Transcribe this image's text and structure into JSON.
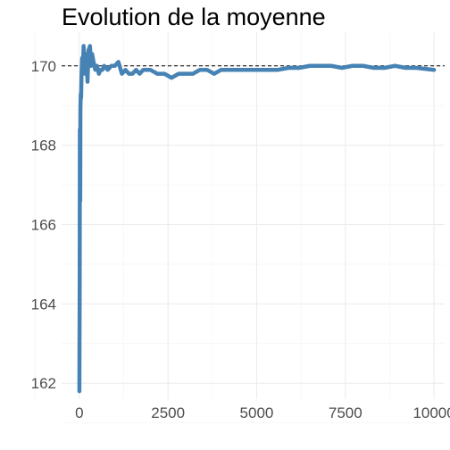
{
  "chart_data": {
    "type": "line",
    "title": "Evolution de la moyenne",
    "xlabel": "",
    "ylabel": "",
    "xlim": [
      -500,
      10300
    ],
    "ylim": [
      161.6,
      170.85
    ],
    "x_ticks": [
      0,
      2500,
      5000,
      7500,
      10000
    ],
    "x_tick_labels": [
      "0",
      "2500",
      "5000",
      "7500",
      "10000"
    ],
    "y_ticks": [
      162,
      164,
      166,
      168,
      170
    ],
    "y_tick_labels": [
      "162",
      "164",
      "166",
      "168",
      "170"
    ],
    "x_minor": [
      -1250,
      1250,
      3750,
      6250,
      8750
    ],
    "y_minor": [
      161,
      163,
      165,
      167,
      169
    ],
    "reference_line": {
      "y": 170,
      "style": "dashed",
      "color": "#000000"
    },
    "grid": true,
    "legend": "none",
    "series": [
      {
        "color": "#4682b4",
        "x": [
          1,
          10,
          15,
          20,
          25,
          30,
          40,
          50,
          60,
          80,
          100,
          120,
          140,
          160,
          180,
          200,
          230,
          260,
          300,
          330,
          360,
          400,
          450,
          500,
          550,
          600,
          650,
          700,
          800,
          900,
          1000,
          1100,
          1200,
          1300,
          1400,
          1500,
          1600,
          1700,
          1800,
          1900,
          2000,
          2200,
          2400,
          2600,
          2800,
          3000,
          3200,
          3400,
          3600,
          3800,
          4000,
          4200,
          4400,
          4600,
          4800,
          5000,
          5300,
          5600,
          5900,
          6200,
          6500,
          6800,
          7100,
          7400,
          7700,
          8000,
          8300,
          8600,
          8900,
          9200,
          9500,
          10000
        ],
        "values": [
          161.8,
          164.5,
          168.4,
          167.3,
          166.6,
          168.9,
          169.3,
          169.2,
          169.7,
          170.2,
          169.9,
          170.5,
          170.2,
          169.8,
          170.1,
          170.3,
          169.6,
          170.4,
          170.5,
          170.0,
          170.3,
          170.1,
          169.9,
          170.0,
          169.8,
          169.9,
          169.9,
          170.0,
          169.9,
          170.0,
          170.0,
          170.1,
          169.8,
          169.9,
          169.8,
          169.8,
          169.9,
          169.8,
          169.9,
          169.9,
          169.9,
          169.8,
          169.8,
          169.7,
          169.8,
          169.8,
          169.8,
          169.9,
          169.9,
          169.8,
          169.9,
          169.9,
          169.9,
          169.9,
          169.9,
          169.9,
          169.9,
          169.9,
          169.95,
          169.95,
          170.0,
          170.0,
          170.0,
          169.95,
          170.0,
          170.0,
          169.95,
          169.95,
          170.0,
          169.95,
          169.95,
          169.9
        ]
      }
    ]
  }
}
